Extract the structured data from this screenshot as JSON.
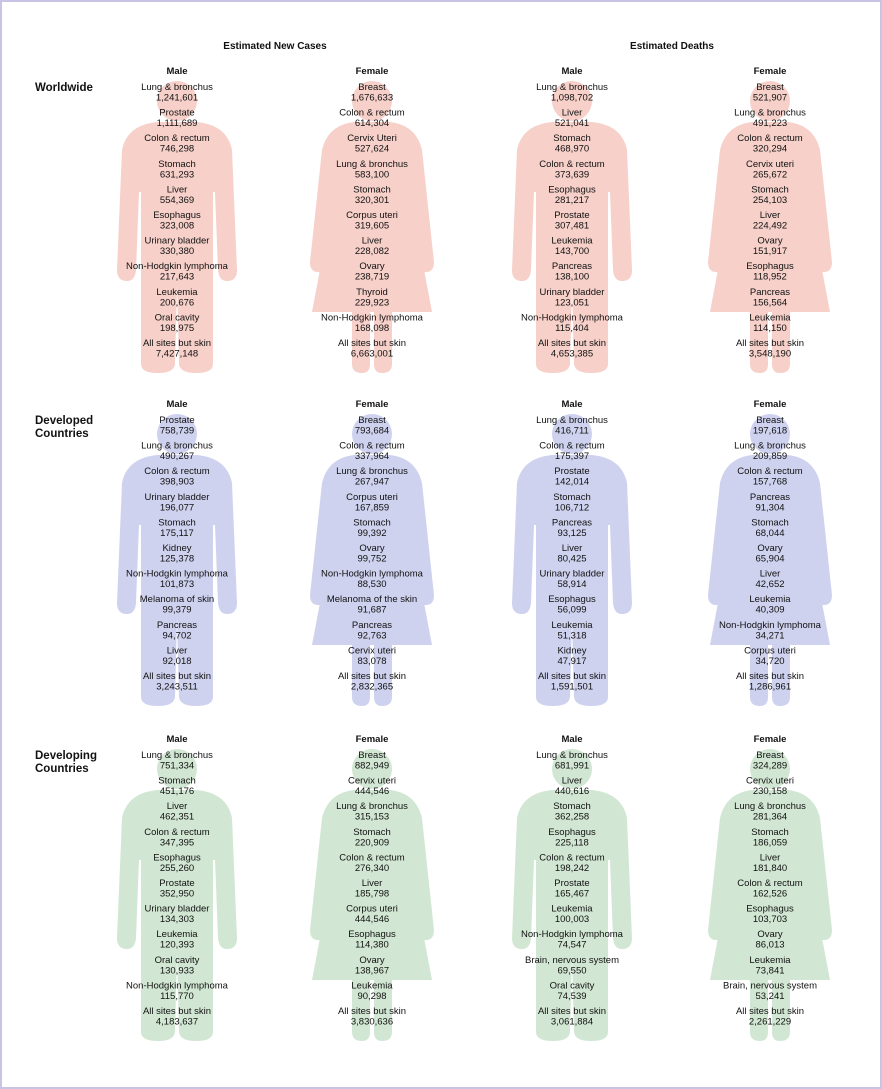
{
  "header": {
    "cases": "Estimated New Cases",
    "deaths": "Estimated Deaths"
  },
  "regions": [
    {
      "label": [
        "Worldwide"
      ],
      "panels": [
        {
          "label": "Male",
          "items": [
            {
              "name": "Lung & bronchus",
              "value": "1,241,601"
            },
            {
              "name": "Prostate",
              "value": "1,111,689"
            },
            {
              "name": "Colon & rectum",
              "value": "746,298"
            },
            {
              "name": "Stomach",
              "value": "631,293"
            },
            {
              "name": "Liver",
              "value": "554,369"
            },
            {
              "name": "Esophagus",
              "value": "323,008"
            },
            {
              "name": "Urinary bladder",
              "value": "330,380"
            },
            {
              "name": "Non-Hodgkin lymphoma",
              "value": "217,643"
            },
            {
              "name": "Leukemia",
              "value": "200,676"
            },
            {
              "name": "Oral cavity",
              "value": "198,975"
            },
            {
              "name": "All sites but skin",
              "value": "7,427,148"
            }
          ]
        },
        {
          "label": "Female",
          "items": [
            {
              "name": "Breast",
              "value": "1,676,633"
            },
            {
              "name": "Colon & rectum",
              "value": "614,304"
            },
            {
              "name": "Cervix Uteri",
              "value": "527,624"
            },
            {
              "name": "Lung & bronchus",
              "value": "583,100"
            },
            {
              "name": "Stomach",
              "value": "320,301"
            },
            {
              "name": "Corpus uteri",
              "value": "319,605"
            },
            {
              "name": "Liver",
              "value": "228,082"
            },
            {
              "name": "Ovary",
              "value": "238,719"
            },
            {
              "name": "Thyroid",
              "value": "229,923"
            },
            {
              "name": "Non-Hodgkin lymphoma",
              "value": "168,098"
            },
            {
              "name": "All sites but skin",
              "value": "6,663,001"
            }
          ]
        },
        {
          "label": "Male",
          "items": [
            {
              "name": "Lung & bronchus",
              "value": "1,098,702"
            },
            {
              "name": "Liver",
              "value": "521,041"
            },
            {
              "name": "Stomach",
              "value": "468,970"
            },
            {
              "name": "Colon & rectum",
              "value": "373,639"
            },
            {
              "name": "Esophagus",
              "value": "281,217"
            },
            {
              "name": "Prostate",
              "value": "307,481"
            },
            {
              "name": "Leukemia",
              "value": "143,700"
            },
            {
              "name": "Pancreas",
              "value": "138,100"
            },
            {
              "name": "Urinary bladder",
              "value": "123,051"
            },
            {
              "name": "Non-Hodgkin lymphoma",
              "value": "115,404"
            },
            {
              "name": "All sites but skin",
              "value": "4,653,385"
            }
          ]
        },
        {
          "label": "Female",
          "items": [
            {
              "name": "Breast",
              "value": "521,907"
            },
            {
              "name": "Lung & bronchus",
              "value": "491,223"
            },
            {
              "name": "Colon & rectum",
              "value": "320,294"
            },
            {
              "name": "Cervix uteri",
              "value": "265,672"
            },
            {
              "name": "Stomach",
              "value": "254,103"
            },
            {
              "name": "Liver",
              "value": "224,492"
            },
            {
              "name": "Ovary",
              "value": "151,917"
            },
            {
              "name": "Esophagus",
              "value": "118,952"
            },
            {
              "name": "Pancreas",
              "value": "156,564"
            },
            {
              "name": "Leukemia",
              "value": "114,150"
            },
            {
              "name": "All sites but skin",
              "value": "3,548,190"
            }
          ]
        }
      ]
    },
    {
      "label": [
        "Developed",
        "Countries"
      ],
      "panels": [
        {
          "label": "Male",
          "items": [
            {
              "name": "Prostate",
              "value": "758,739"
            },
            {
              "name": "Lung & bronchus",
              "value": "490,267"
            },
            {
              "name": "Colon & rectum",
              "value": "398,903"
            },
            {
              "name": "Urinary bladder",
              "value": "196,077"
            },
            {
              "name": "Stomach",
              "value": "175,117"
            },
            {
              "name": "Kidney",
              "value": "125,378"
            },
            {
              "name": "Non-Hodgkin lymphoma",
              "value": "101,873"
            },
            {
              "name": "Melanoma of skin",
              "value": "99,379"
            },
            {
              "name": "Pancreas",
              "value": "94,702"
            },
            {
              "name": "Liver",
              "value": "92,018"
            },
            {
              "name": "All sites but skin",
              "value": "3,243,511"
            }
          ]
        },
        {
          "label": "Female",
          "items": [
            {
              "name": "Breast",
              "value": "793,684"
            },
            {
              "name": "Colon & rectum",
              "value": "337,964"
            },
            {
              "name": "Lung & bronchus",
              "value": "267,947"
            },
            {
              "name": "Corpus uteri",
              "value": "167,859"
            },
            {
              "name": "Stomach",
              "value": "99,392"
            },
            {
              "name": "Ovary",
              "value": "99,752"
            },
            {
              "name": "Non-Hodgkin lymphoma",
              "value": "88,530"
            },
            {
              "name": "Melanoma of the skin",
              "value": "91,687"
            },
            {
              "name": "Pancreas",
              "value": "92,763"
            },
            {
              "name": "Cervix uteri",
              "value": "83,078"
            },
            {
              "name": "All sites but skin",
              "value": "2,832,365"
            }
          ]
        },
        {
          "label": "Male",
          "items": [
            {
              "name": "Lung & bronchus",
              "value": "416,711"
            },
            {
              "name": "Colon & rectum",
              "value": "175,397"
            },
            {
              "name": "Prostate",
              "value": "142,014"
            },
            {
              "name": "Stomach",
              "value": "106,712"
            },
            {
              "name": "Pancreas",
              "value": "93,125"
            },
            {
              "name": "Liver",
              "value": "80,425"
            },
            {
              "name": "Urinary bladder",
              "value": "58,914"
            },
            {
              "name": "Esophagus",
              "value": "56,099"
            },
            {
              "name": "Leukemia",
              "value": "51,318"
            },
            {
              "name": "Kidney",
              "value": "47,917"
            },
            {
              "name": "All sites but skin",
              "value": "1,591,501"
            }
          ]
        },
        {
          "label": "Female",
          "items": [
            {
              "name": "Breast",
              "value": "197,618"
            },
            {
              "name": "Lung & bronchus",
              "value": "209,859"
            },
            {
              "name": "Colon & rectum",
              "value": "157,768"
            },
            {
              "name": "Pancreas",
              "value": "91,304"
            },
            {
              "name": "Stomach",
              "value": "68,044"
            },
            {
              "name": "Ovary",
              "value": "65,904"
            },
            {
              "name": "Liver",
              "value": "42,652"
            },
            {
              "name": "Leukemia",
              "value": "40,309"
            },
            {
              "name": "Non-Hodgkin lymphoma",
              "value": "34,271"
            },
            {
              "name": "Corpus uteri",
              "value": "34,720"
            },
            {
              "name": "All sites but skin",
              "value": "1,286,961"
            }
          ]
        }
      ]
    },
    {
      "label": [
        "Developing",
        "Countries"
      ],
      "panels": [
        {
          "label": "Male",
          "items": [
            {
              "name": "Lung & bronchus",
              "value": "751,334"
            },
            {
              "name": "Stomach",
              "value": "451,176"
            },
            {
              "name": "Liver",
              "value": "462,351"
            },
            {
              "name": "Colon & rectum",
              "value": "347,395"
            },
            {
              "name": "Esophagus",
              "value": "255,260"
            },
            {
              "name": "Prostate",
              "value": "352,950"
            },
            {
              "name": "Urinary bladder",
              "value": "134,303"
            },
            {
              "name": "Leukemia",
              "value": "120,393"
            },
            {
              "name": "Oral cavity",
              "value": "130,933"
            },
            {
              "name": "Non-Hodgkin lymphoma",
              "value": "115,770"
            },
            {
              "name": "All sites but skin",
              "value": "4,183,637"
            }
          ]
        },
        {
          "label": "Female",
          "items": [
            {
              "name": "Breast",
              "value": "882,949"
            },
            {
              "name": "Cervix uteri",
              "value": "444,546"
            },
            {
              "name": "Lung & bronchus",
              "value": "315,153"
            },
            {
              "name": "Stomach",
              "value": "220,909"
            },
            {
              "name": "Colon & rectum",
              "value": "276,340"
            },
            {
              "name": "Liver",
              "value": "185,798"
            },
            {
              "name": "Corpus uteri",
              "value": "444,546"
            },
            {
              "name": "Esophagus",
              "value": "114,380"
            },
            {
              "name": "Ovary",
              "value": "138,967"
            },
            {
              "name": "Leukemia",
              "value": "90,298"
            },
            {
              "name": "All sites but skin",
              "value": "3,830,636"
            }
          ]
        },
        {
          "label": "Male",
          "items": [
            {
              "name": "Lung & bronchus",
              "value": "681,991"
            },
            {
              "name": "Liver",
              "value": "440,616"
            },
            {
              "name": "Stomach",
              "value": "362,258"
            },
            {
              "name": "Esophagus",
              "value": "225,118"
            },
            {
              "name": "Colon & rectum",
              "value": "198,242"
            },
            {
              "name": "Prostate",
              "value": "165,467"
            },
            {
              "name": "Leukemia",
              "value": "100,003"
            },
            {
              "name": "Non-Hodgkin lymphoma",
              "value": "74,547"
            },
            {
              "name": "Brain, nervous system",
              "value": "69,550"
            },
            {
              "name": "Oral cavity",
              "value": "74,539"
            },
            {
              "name": "All sites but skin",
              "value": "3,061,884"
            }
          ]
        },
        {
          "label": "Female",
          "items": [
            {
              "name": "Breast",
              "value": "324,289"
            },
            {
              "name": "Cervix uteri",
              "value": "230,158"
            },
            {
              "name": "Lung & bronchus",
              "value": "281,364"
            },
            {
              "name": "Stomach",
              "value": "186,059"
            },
            {
              "name": "Liver",
              "value": "181,840"
            },
            {
              "name": "Colon & rectum",
              "value": "162,526"
            },
            {
              "name": "Esophagus",
              "value": "103,703"
            },
            {
              "name": "Ovary",
              "value": "86,013"
            },
            {
              "name": "Leukemia",
              "value": "73,841"
            },
            {
              "name": "Brain, nervous system",
              "value": "53,241"
            },
            {
              "name": "All sites but skin",
              "value": "2,261,229"
            }
          ]
        }
      ]
    }
  ]
}
